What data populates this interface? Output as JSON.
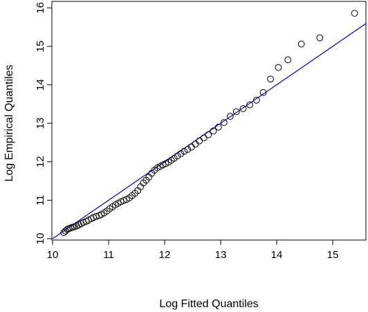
{
  "chart_data": {
    "type": "scatter",
    "title": "",
    "xlabel": "Log Fitted Quantiles",
    "ylabel": "Log Empirical Quantiles",
    "xlim": [
      10,
      15.6
    ],
    "ylim": [
      10,
      16
    ],
    "x_ticks": [
      10,
      11,
      12,
      13,
      14,
      15
    ],
    "y_ticks": [
      10,
      11,
      12,
      13,
      14,
      15,
      16
    ],
    "grid": false,
    "point_style": "open-circle",
    "point_color": "#000000",
    "reference_line": {
      "color": "#0000cc",
      "intercept": 0,
      "slope": 1
    },
    "points": [
      {
        "x": 10.2,
        "y": 10.16
      },
      {
        "x": 10.23,
        "y": 10.2
      },
      {
        "x": 10.26,
        "y": 10.24
      },
      {
        "x": 10.29,
        "y": 10.26
      },
      {
        "x": 10.32,
        "y": 10.28
      },
      {
        "x": 10.36,
        "y": 10.3
      },
      {
        "x": 10.39,
        "y": 10.31
      },
      {
        "x": 10.43,
        "y": 10.33
      },
      {
        "x": 10.47,
        "y": 10.36
      },
      {
        "x": 10.51,
        "y": 10.39
      },
      {
        "x": 10.55,
        "y": 10.42
      },
      {
        "x": 10.6,
        "y": 10.45
      },
      {
        "x": 10.64,
        "y": 10.48
      },
      {
        "x": 10.69,
        "y": 10.52
      },
      {
        "x": 10.73,
        "y": 10.55
      },
      {
        "x": 10.78,
        "y": 10.58
      },
      {
        "x": 10.83,
        "y": 10.6
      },
      {
        "x": 10.87,
        "y": 10.63
      },
      {
        "x": 10.92,
        "y": 10.67
      },
      {
        "x": 10.97,
        "y": 10.72
      },
      {
        "x": 11.02,
        "y": 10.78
      },
      {
        "x": 11.07,
        "y": 10.83
      },
      {
        "x": 11.12,
        "y": 10.88
      },
      {
        "x": 11.17,
        "y": 10.92
      },
      {
        "x": 11.22,
        "y": 10.96
      },
      {
        "x": 11.27,
        "y": 10.99
      },
      {
        "x": 11.32,
        "y": 11.02
      },
      {
        "x": 11.37,
        "y": 11.06
      },
      {
        "x": 11.42,
        "y": 11.12
      },
      {
        "x": 11.47,
        "y": 11.18
      },
      {
        "x": 11.52,
        "y": 11.25
      },
      {
        "x": 11.57,
        "y": 11.35
      },
      {
        "x": 11.62,
        "y": 11.45
      },
      {
        "x": 11.67,
        "y": 11.52
      },
      {
        "x": 11.72,
        "y": 11.6
      },
      {
        "x": 11.77,
        "y": 11.7
      },
      {
        "x": 11.82,
        "y": 11.78
      },
      {
        "x": 11.87,
        "y": 11.84
      },
      {
        "x": 11.92,
        "y": 11.88
      },
      {
        "x": 11.97,
        "y": 11.92
      },
      {
        "x": 12.02,
        "y": 11.95
      },
      {
        "x": 12.07,
        "y": 11.99
      },
      {
        "x": 12.12,
        "y": 12.04
      },
      {
        "x": 12.17,
        "y": 12.09
      },
      {
        "x": 12.23,
        "y": 12.15
      },
      {
        "x": 12.29,
        "y": 12.21
      },
      {
        "x": 12.35,
        "y": 12.27
      },
      {
        "x": 12.41,
        "y": 12.32
      },
      {
        "x": 12.48,
        "y": 12.38
      },
      {
        "x": 12.55,
        "y": 12.46
      },
      {
        "x": 12.62,
        "y": 12.54
      },
      {
        "x": 12.7,
        "y": 12.62
      },
      {
        "x": 12.78,
        "y": 12.7
      },
      {
        "x": 12.87,
        "y": 12.8
      },
      {
        "x": 12.96,
        "y": 12.9
      },
      {
        "x": 13.06,
        "y": 13.02
      },
      {
        "x": 13.17,
        "y": 13.18
      },
      {
        "x": 13.28,
        "y": 13.3
      },
      {
        "x": 13.4,
        "y": 13.38
      },
      {
        "x": 13.52,
        "y": 13.48
      },
      {
        "x": 13.64,
        "y": 13.6
      },
      {
        "x": 13.76,
        "y": 13.8
      },
      {
        "x": 13.89,
        "y": 14.15
      },
      {
        "x": 14.03,
        "y": 14.45
      },
      {
        "x": 14.2,
        "y": 14.65
      },
      {
        "x": 14.44,
        "y": 15.06
      },
      {
        "x": 14.77,
        "y": 15.22
      },
      {
        "x": 15.39,
        "y": 15.86
      }
    ]
  }
}
